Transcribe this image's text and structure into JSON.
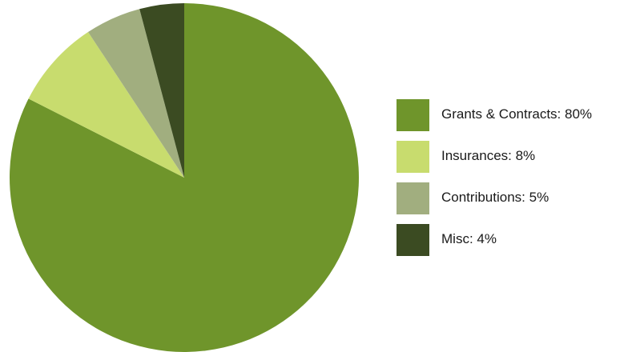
{
  "chart_data": {
    "type": "pie",
    "slices": [
      {
        "label": "Grants & Contracts: 80%",
        "category": "Grants & Contracts",
        "value": 80,
        "color": "#6f952b"
      },
      {
        "label": "Insurances: 8%",
        "category": "Insurances",
        "value": 8,
        "color": "#c8dc6e"
      },
      {
        "label": "Contributions: 5%",
        "category": "Contributions",
        "value": 5,
        "color": "#a1ae7f"
      },
      {
        "label": "Misc: 4%",
        "category": "Misc",
        "value": 4,
        "color": "#3b4b22"
      }
    ],
    "legend_position": "right"
  }
}
